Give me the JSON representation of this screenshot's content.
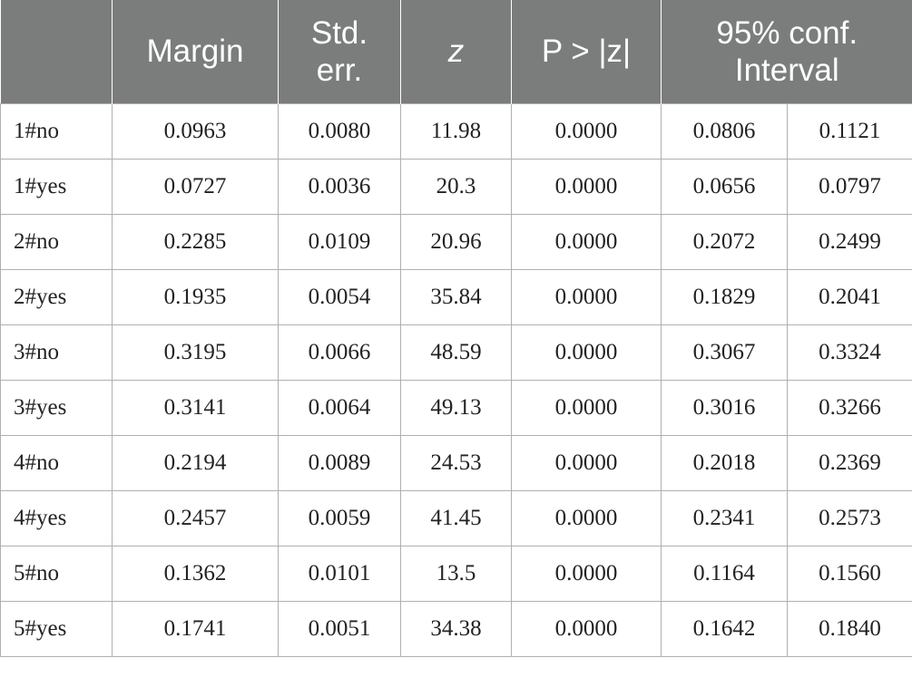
{
  "table": {
    "headers": [
      "",
      "Margin",
      "Std.\nerr.",
      "z",
      "P > |z|",
      "95% conf.\nInterval"
    ],
    "rows": [
      {
        "label": "1#no",
        "margin": "0.0963",
        "std_err": "0.0080",
        "z": "11.98",
        "p": "0.0000",
        "ci_low": "0.0806",
        "ci_high": "0.1121"
      },
      {
        "label": "1#yes",
        "margin": "0.0727",
        "std_err": "0.0036",
        "z": "20.3",
        "p": "0.0000",
        "ci_low": "0.0656",
        "ci_high": "0.0797"
      },
      {
        "label": "2#no",
        "margin": "0.2285",
        "std_err": "0.0109",
        "z": "20.96",
        "p": "0.0000",
        "ci_low": "0.2072",
        "ci_high": "0.2499"
      },
      {
        "label": "2#yes",
        "margin": "0.1935",
        "std_err": "0.0054",
        "z": "35.84",
        "p": "0.0000",
        "ci_low": "0.1829",
        "ci_high": "0.2041"
      },
      {
        "label": "3#no",
        "margin": "0.3195",
        "std_err": "0.0066",
        "z": "48.59",
        "p": "0.0000",
        "ci_low": "0.3067",
        "ci_high": "0.3324"
      },
      {
        "label": "3#yes",
        "margin": "0.3141",
        "std_err": "0.0064",
        "z": "49.13",
        "p": "0.0000",
        "ci_low": "0.3016",
        "ci_high": "0.3266"
      },
      {
        "label": "4#no",
        "margin": "0.2194",
        "std_err": "0.0089",
        "z": "24.53",
        "p": "0.0000",
        "ci_low": "0.2018",
        "ci_high": "0.2369"
      },
      {
        "label": "4#yes",
        "margin": "0.2457",
        "std_err": "0.0059",
        "z": "41.45",
        "p": "0.0000",
        "ci_low": "0.2341",
        "ci_high": "0.2573"
      },
      {
        "label": "5#no",
        "margin": "0.1362",
        "std_err": "0.0101",
        "z": "13.5",
        "p": "0.0000",
        "ci_low": "0.1164",
        "ci_high": "0.1560"
      },
      {
        "label": "5#yes",
        "margin": "0.1741",
        "std_err": "0.0051",
        "z": "34.38",
        "p": "0.0000",
        "ci_low": "0.1642",
        "ci_high": "0.1840"
      }
    ]
  },
  "colors": {
    "header_bg": "#7b7d7c",
    "header_text": "#ffffff",
    "grid": "#b0b0b0"
  }
}
